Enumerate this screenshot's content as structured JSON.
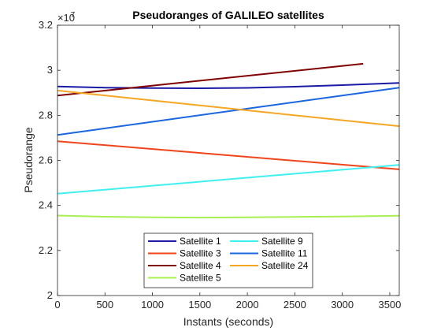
{
  "chart_data": {
    "type": "line",
    "title": "Pseudoranges of GALILEO satellites",
    "xlabel": "Instants (seconds)",
    "ylabel": "Pseudorange",
    "xlim": [
      0,
      3600
    ],
    "ylim": [
      2.0,
      3.2
    ],
    "y_multiplier": {
      "base": "10",
      "exponent": "7"
    },
    "x_ticks": [
      0,
      500,
      1000,
      1500,
      2000,
      2500,
      3000,
      3500
    ],
    "x_tick_labels": [
      "0",
      "500",
      "1000",
      "1500",
      "2000",
      "2500",
      "3000",
      "3500"
    ],
    "y_ticks": [
      2.0,
      2.2,
      2.4,
      2.6,
      2.8,
      3.0,
      3.2
    ],
    "y_tick_labels": [
      "2",
      "2.2",
      "2.4",
      "2.6",
      "2.8",
      "3",
      "3.2"
    ],
    "grid": false,
    "legend_position": "bottom-center",
    "series": [
      {
        "name": "Satellite 1",
        "color": "#1a1aa6",
        "x": [
          0,
          500,
          1000,
          1500,
          2000,
          2500,
          3000,
          3600
        ],
        "y": [
          2.928,
          2.923,
          2.921,
          2.92,
          2.922,
          2.927,
          2.934,
          2.944
        ]
      },
      {
        "name": "Satellite 3",
        "color": "#f0441a",
        "x": [
          0,
          3600
        ],
        "y": [
          2.685,
          2.56
        ]
      },
      {
        "name": "Satellite 4",
        "color": "#800000",
        "x": [
          0,
          3220
        ],
        "y": [
          2.888,
          3.029
        ]
      },
      {
        "name": "Satellite 5",
        "color": "#a8f050",
        "x": [
          0,
          500,
          1000,
          1500,
          2000,
          2500,
          3000,
          3600
        ],
        "y": [
          2.355,
          2.35,
          2.347,
          2.346,
          2.347,
          2.349,
          2.351,
          2.354
        ]
      },
      {
        "name": "Satellite 9",
        "color": "#40f0f0",
        "x": [
          0,
          3600
        ],
        "y": [
          2.452,
          2.58
        ]
      },
      {
        "name": "Satellite 11",
        "color": "#1a66e0",
        "x": [
          0,
          3600
        ],
        "y": [
          2.713,
          2.923
        ]
      },
      {
        "name": "Satellite 24",
        "color": "#f5a623",
        "x": [
          0,
          3600
        ],
        "y": [
          2.91,
          2.752
        ]
      }
    ]
  }
}
